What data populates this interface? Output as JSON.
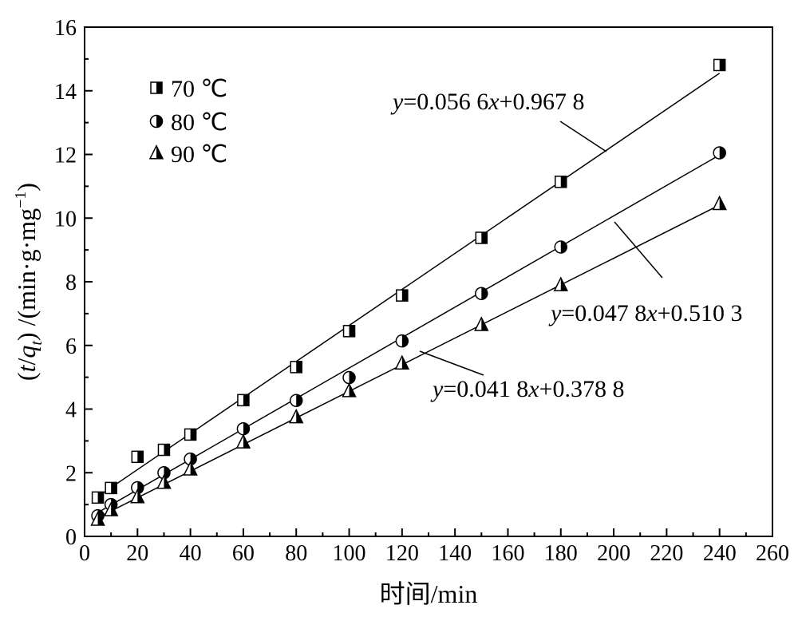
{
  "chart_data": {
    "type": "scatter",
    "xlabel": "时间/min",
    "ylabel": "(t/qt) /(min·g·mg−1)",
    "xlim": [
      0,
      260
    ],
    "ylim": [
      0,
      16
    ],
    "x_ticks": [
      "0",
      "20",
      "40",
      "60",
      "80",
      "100",
      "120",
      "140",
      "160",
      "180",
      "200",
      "220",
      "240",
      "260"
    ],
    "y_ticks": [
      "0",
      "2",
      "4",
      "6",
      "8",
      "10",
      "12",
      "14",
      "16"
    ],
    "grid": false,
    "legend_position": "top-left",
    "series": [
      {
        "name": "70 ℃",
        "marker": "half-filled-square",
        "x": [
          5,
          10,
          20,
          30,
          40,
          60,
          80,
          100,
          120,
          150,
          180,
          240
        ],
        "y": [
          1.22,
          1.52,
          2.5,
          2.72,
          3.2,
          4.28,
          5.32,
          6.45,
          7.57,
          9.38,
          11.14,
          14.81
        ],
        "fit": {
          "slope": 0.0566,
          "intercept": 0.9678,
          "label": "y=0.056 6x+0.967 8"
        }
      },
      {
        "name": "80 ℃",
        "marker": "half-filled-circle",
        "x": [
          5,
          10,
          20,
          30,
          40,
          60,
          80,
          100,
          120,
          150,
          180,
          240
        ],
        "y": [
          0.65,
          1.0,
          1.53,
          2.0,
          2.43,
          3.38,
          4.27,
          4.99,
          6.14,
          7.63,
          9.09,
          12.05
        ],
        "fit": {
          "slope": 0.0478,
          "intercept": 0.5103,
          "label": "y=0.047 8x+0.510 3"
        }
      },
      {
        "name": "90 ℃",
        "marker": "half-filled-triangle",
        "x": [
          5,
          10,
          20,
          30,
          40,
          60,
          80,
          100,
          120,
          150,
          180,
          240
        ],
        "y": [
          0.52,
          0.82,
          1.23,
          1.68,
          2.1,
          2.95,
          3.74,
          4.56,
          5.43,
          6.64,
          7.89,
          10.44
        ],
        "fit": {
          "slope": 0.0418,
          "intercept": 0.3788,
          "label": "y=0.041 8x+0.378 8"
        }
      }
    ]
  }
}
